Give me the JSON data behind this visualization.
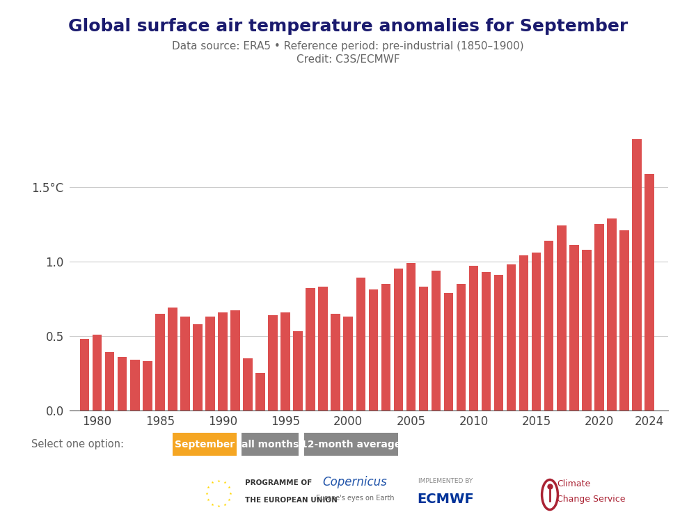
{
  "title": "Global surface air temperature anomalies for September",
  "subtitle_line1": "Data source: ERA5 • Reference period: pre-industrial (1850–1900)",
  "subtitle_line2": "Credit: C3S/ECMWF",
  "years": [
    1979,
    1980,
    1981,
    1982,
    1983,
    1984,
    1985,
    1986,
    1987,
    1988,
    1989,
    1990,
    1991,
    1992,
    1993,
    1994,
    1995,
    1996,
    1997,
    1998,
    1999,
    2000,
    2001,
    2002,
    2003,
    2004,
    2005,
    2006,
    2007,
    2008,
    2009,
    2010,
    2011,
    2012,
    2013,
    2014,
    2015,
    2016,
    2017,
    2018,
    2019,
    2020,
    2021,
    2022,
    2023,
    2024
  ],
  "values": [
    0.48,
    0.51,
    0.39,
    0.36,
    0.34,
    0.33,
    0.65,
    0.69,
    0.63,
    0.58,
    0.63,
    0.66,
    0.67,
    0.35,
    0.25,
    0.64,
    0.66,
    0.53,
    0.82,
    0.83,
    0.65,
    0.63,
    0.89,
    0.81,
    0.85,
    0.95,
    0.99,
    0.83,
    0.94,
    0.79,
    0.85,
    0.97,
    0.93,
    0.91,
    0.98,
    1.04,
    1.06,
    1.14,
    1.24,
    1.11,
    1.08,
    1.25,
    1.29,
    1.21,
    1.82,
    1.59
  ],
  "bar_color": "#dc4f4f",
  "ytick_values": [
    0.0,
    0.5,
    1.0,
    1.5
  ],
  "ytick_labels": [
    "0.0",
    "0.5",
    "1.0",
    "1.5°C"
  ],
  "ylim": [
    0,
    2.05
  ],
  "xtick_values": [
    1980,
    1985,
    1990,
    1995,
    2000,
    2005,
    2010,
    2015,
    2020,
    2024
  ],
  "xlim": [
    1977.8,
    2025.5
  ],
  "background_color": "#ffffff",
  "grid_color": "#cccccc",
  "title_color": "#1a1a6e",
  "subtitle_color": "#666666",
  "select_text": "Select one option:",
  "button_sep_text": "September",
  "button_sep_color": "#f5a623",
  "button_all_text": "all months",
  "button_all_color": "#888888",
  "button_12m_text": "12-month average",
  "button_12m_color": "#888888",
  "eu_flag_color": "#003399",
  "eu_star_color": "#FFD700"
}
